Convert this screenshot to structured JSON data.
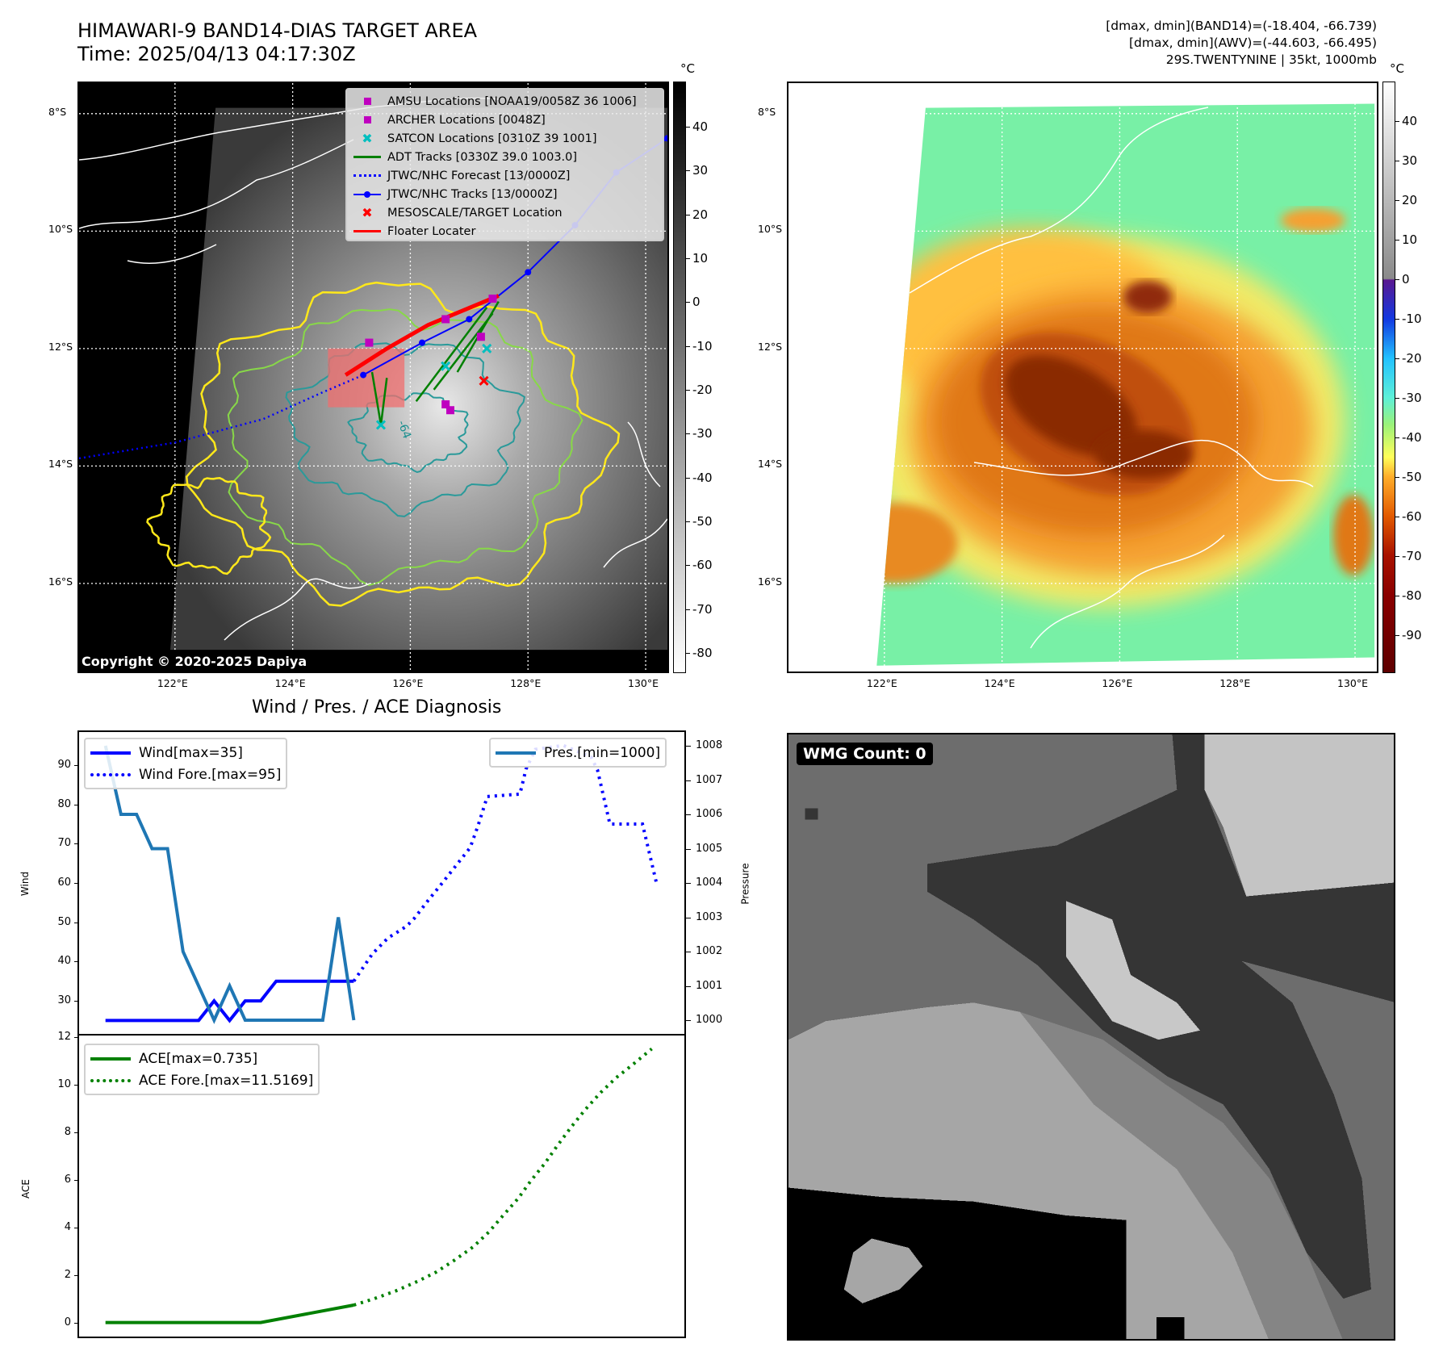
{
  "header": {
    "title": "HIMAWARI-9 BAND14-DIAS TARGET AREA",
    "time": "Time: 2025/04/13 04:17:30Z",
    "stats": [
      "[dmax, dmin](BAND14)=(-18.404, -66.739)",
      "[dmax, dmin](AWV)=(-44.603, -66.495)",
      "29S.TWENTYNINE | 35kt, 1000mb"
    ]
  },
  "map": {
    "lat_ticks": [
      {
        "v": 8,
        "label": "8°S"
      },
      {
        "v": 10,
        "label": "10°S"
      },
      {
        "v": 12,
        "label": "12°S"
      },
      {
        "v": 14,
        "label": "14°S"
      },
      {
        "v": 16,
        "label": "16°S"
      }
    ],
    "lon_ticks": [
      {
        "v": 122,
        "label": "122°E"
      },
      {
        "v": 124,
        "label": "124°E"
      },
      {
        "v": 126,
        "label": "126°E"
      },
      {
        "v": 128,
        "label": "128°E"
      },
      {
        "v": 130,
        "label": "130°E"
      }
    ],
    "lon_range": [
      120.37,
      130.37
    ],
    "lat_range": [
      7.48,
      17.5
    ],
    "legend": [
      {
        "label": "AMSU Locations [NOAA19/0058Z 36 1006]",
        "symbol": "square",
        "color": "#bf00bf"
      },
      {
        "label": "ARCHER Locations [0048Z]",
        "symbol": "square",
        "color": "#bf00bf"
      },
      {
        "label": "SATCON Locations [0310Z 39 1001]",
        "symbol": "x",
        "color": "#00bfbf"
      },
      {
        "label": "ADT Tracks [0330Z 39.0 1003.0]",
        "symbol": "line",
        "color": "#008000"
      },
      {
        "label": "JTWC/NHC Forecast [13/0000Z]",
        "symbol": "dotted",
        "color": "#0000ff"
      },
      {
        "label": "JTWC/NHC Tracks [13/0000Z]",
        "symbol": "line-dot",
        "color": "#0000ff"
      },
      {
        "label": "MESOSCALE/TARGET Location",
        "symbol": "x",
        "color": "#ff0000"
      },
      {
        "label": "Floater Locater",
        "symbol": "line",
        "color": "#ff0000"
      }
    ],
    "contour_label": "-64",
    "copyright": "Copyright © 2020-2025 Dapiya",
    "forecast_track": [
      [
        120.37,
        13.87
      ],
      [
        122,
        13.6
      ],
      [
        123.5,
        13.2
      ],
      [
        124.5,
        12.75
      ],
      [
        125.2,
        12.45
      ]
    ],
    "best_track": [
      [
        125.2,
        12.45
      ],
      [
        126.2,
        11.9
      ],
      [
        127.0,
        11.5
      ],
      [
        128.0,
        10.7
      ],
      [
        128.8,
        9.9
      ],
      [
        129.5,
        9.0
      ],
      [
        130.37,
        8.42
      ]
    ],
    "floater": [
      [
        124.9,
        12.45
      ],
      [
        125.6,
        12.0
      ],
      [
        126.3,
        11.6
      ],
      [
        127.5,
        11.1
      ]
    ],
    "adt_tracks": [
      [
        [
          125.5,
          13.3
        ],
        [
          125.35,
          12.4
        ]
      ],
      [
        [
          125.5,
          13.3
        ],
        [
          125.6,
          12.5
        ]
      ],
      [
        [
          126.1,
          12.9
        ],
        [
          127.3,
          11.3
        ]
      ],
      [
        [
          126.4,
          12.7
        ],
        [
          127.4,
          11.4
        ]
      ],
      [
        [
          126.8,
          12.4
        ],
        [
          127.5,
          11.2
        ]
      ]
    ],
    "target_box": [
      [
        124.6,
        12.0
      ],
      [
        125.9,
        13.0
      ]
    ],
    "amsu_points": [
      [
        125.3,
        11.9
      ],
      [
        126.6,
        11.5
      ],
      [
        126.6,
        12.95
      ],
      [
        126.68,
        13.05
      ],
      [
        127.2,
        11.8
      ],
      [
        127.4,
        11.15
      ]
    ],
    "satcon_points": [
      [
        127.3,
        12.0
      ],
      [
        125.5,
        13.3
      ],
      [
        126.6,
        12.3
      ]
    ],
    "target_points": [
      [
        127.25,
        12.55
      ]
    ]
  },
  "colorbar1": {
    "unit": "°C",
    "range": [
      50.3,
      -84.6
    ],
    "ticks": [
      40,
      30,
      20,
      10,
      0,
      -10,
      -20,
      -30,
      -40,
      -50,
      -60,
      -70,
      -80
    ]
  },
  "colorbar2": {
    "unit": "°C",
    "range": [
      50,
      -99.6
    ],
    "ticks": [
      40,
      30,
      20,
      10,
      0,
      -10,
      -20,
      -30,
      -40,
      -50,
      -60,
      -70,
      -80,
      -90
    ]
  },
  "chart_data": [
    {
      "type": "line",
      "title": "Wind / Pres. / ACE Diagnosis",
      "ylabel": "Wind",
      "y2label": "Pressure",
      "xlim": [
        -1.7,
        37.3
      ],
      "ylim": [
        21.6,
        98.4
      ],
      "y2lim": [
        999.6,
        1008.4
      ],
      "yticks": [
        30,
        40,
        50,
        60,
        70,
        80,
        90
      ],
      "y2ticks": [
        1000,
        1001,
        1002,
        1003,
        1004,
        1005,
        1006,
        1007,
        1008
      ],
      "series": [
        {
          "name": "Wind[max=35]",
          "axis": "left",
          "style": "solid",
          "color": "#0000ff",
          "x": [
            0,
            1,
            2,
            3,
            4,
            5,
            6,
            7,
            8,
            9,
            10,
            11,
            12,
            13,
            14,
            15,
            16
          ],
          "y": [
            25,
            25,
            25,
            25,
            25,
            25,
            25,
            30,
            25,
            30,
            30,
            35,
            35,
            35,
            35,
            35,
            35
          ]
        },
        {
          "name": "Wind Fore.[max=95]",
          "axis": "left",
          "style": "dotted",
          "color": "#0000ff",
          "x": [
            16,
            17.2,
            18.2,
            19.4,
            19.9,
            20.8,
            21.7,
            22.6,
            23.5,
            24,
            24.6,
            26.7,
            27.1,
            27.7,
            29.5,
            31.3,
            31.7,
            32.5,
            34.6,
            35.5
          ],
          "y": [
            35,
            42,
            46,
            49,
            51,
            55.6,
            60,
            64.5,
            69,
            74.5,
            82,
            82.6,
            89,
            94,
            95,
            92,
            88.8,
            75,
            75,
            60
          ]
        },
        {
          "name": "Pres.[min=1000]",
          "axis": "right",
          "style": "solid",
          "color": "#1f77b4",
          "x": [
            0,
            1,
            2,
            3,
            4,
            5,
            7,
            8,
            9,
            14,
            15,
            16
          ],
          "y": [
            1008,
            1006,
            1006,
            1005,
            1005,
            1002,
            1000,
            1001,
            1000,
            1000,
            1003,
            1000
          ]
        }
      ]
    },
    {
      "type": "line",
      "ylabel": "ACE",
      "xlim": [
        -1.7,
        37.3
      ],
      "ylim": [
        -0.59,
        12.08
      ],
      "yticks": [
        0,
        2,
        4,
        6,
        8,
        10,
        12
      ],
      "series": [
        {
          "name": "ACE[max=0.735]",
          "style": "solid",
          "color": "#008000",
          "x": [
            0,
            10,
            16
          ],
          "y": [
            0,
            0,
            0.735
          ]
        },
        {
          "name": "ACE Fore.[max=11.5169]",
          "style": "dotted",
          "color": "#008000",
          "x": [
            16,
            17.3,
            18.7,
            20.1,
            21.3,
            22.5,
            23.7,
            24.7,
            25.6,
            26.6,
            27.4,
            28.3,
            29.1,
            30,
            30.9,
            31.9,
            32.9,
            34,
            35.2
          ],
          "y": [
            0.735,
            1.0,
            1.33,
            1.73,
            2.12,
            2.63,
            3.19,
            3.81,
            4.49,
            5.23,
            5.96,
            6.69,
            7.43,
            8.22,
            8.95,
            9.68,
            10.3,
            10.87,
            11.52
          ]
        }
      ]
    }
  ],
  "wmg": {
    "label": "WMG Count: 0"
  }
}
